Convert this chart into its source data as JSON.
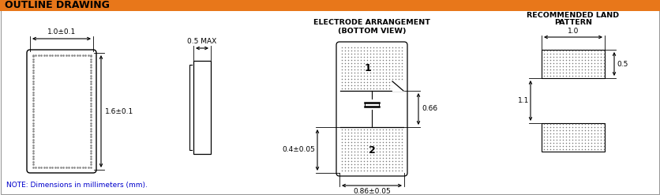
{
  "title": "OUTLINE DRAWING",
  "title_bg": "#E8771A",
  "title_text_color": "#000000",
  "bg_color": "#FFFFFF",
  "dc": "#000000",
  "note": "NOTE: Dimensions in millimeters (mm).",
  "note_color": "#0000CC",
  "sec3_title1": "ELECTRODE ARRANGEMENT",
  "sec3_title2": "(BOTTOM VIEW)",
  "sec4_title1": "RECOMMENDED LAND",
  "sec4_title2": "PATTERN",
  "dim_w": "1.0±0.1",
  "dim_h": "1.6±0.1",
  "dim_thick": "0.5 MAX",
  "dim_gap": "0.66",
  "dim_elec_h": "0.4±0.05",
  "dim_elec_w": "0.86±0.05",
  "dim_land_w": "1.0",
  "dim_land_pad_h": "0.5",
  "dim_land_gap": "1.1"
}
